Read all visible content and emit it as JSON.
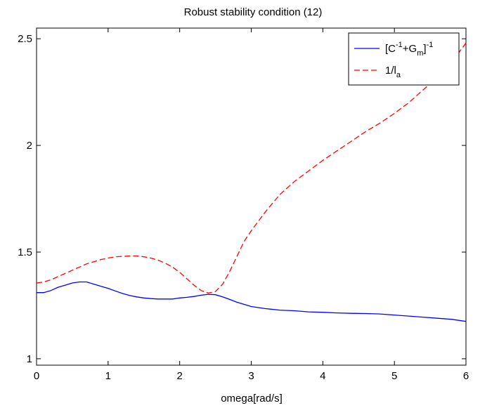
{
  "chart_data": {
    "type": "line",
    "title": "Robust stability condition (12)",
    "xlabel": "omega[rad/s]",
    "ylabel": "",
    "xlim": [
      0,
      6
    ],
    "ylim": [
      0.97,
      2.55
    ],
    "xticks": [
      "0",
      "1",
      "2",
      "3",
      "4",
      "5",
      "6"
    ],
    "yticks": [
      "1",
      "1.5",
      "2",
      "2.5"
    ],
    "xtick_values": [
      0,
      1,
      2,
      3,
      4,
      5,
      6
    ],
    "ytick_values": [
      1,
      1.5,
      2,
      2.5
    ],
    "grid": false,
    "legend_position": "top-right",
    "series": [
      {
        "name": "[C-1+Gm]-1",
        "legend": {
          "base": "[C",
          "sup1": "-1",
          "mid": "+G",
          "sub": "m",
          "close": "]",
          "sup2": "-1"
        },
        "color": "#0000ff",
        "style": "solid",
        "x": [
          0,
          0.1,
          0.2,
          0.3,
          0.4,
          0.5,
          0.6,
          0.7,
          0.8,
          0.9,
          1.0,
          1.1,
          1.2,
          1.3,
          1.4,
          1.5,
          1.6,
          1.7,
          1.8,
          1.9,
          2.0,
          2.1,
          2.2,
          2.3,
          2.4,
          2.5,
          2.6,
          2.7,
          2.8,
          2.9,
          3.0,
          3.2,
          3.4,
          3.6,
          3.8,
          4.0,
          4.2,
          4.4,
          4.6,
          4.8,
          5.0,
          5.2,
          5.4,
          5.6,
          5.8,
          6.0
        ],
        "y": [
          1.31,
          1.31,
          1.32,
          1.335,
          1.345,
          1.355,
          1.36,
          1.36,
          1.35,
          1.34,
          1.33,
          1.318,
          1.306,
          1.297,
          1.29,
          1.285,
          1.282,
          1.28,
          1.28,
          1.28,
          1.285,
          1.288,
          1.292,
          1.298,
          1.302,
          1.3,
          1.29,
          1.278,
          1.265,
          1.255,
          1.245,
          1.235,
          1.228,
          1.225,
          1.22,
          1.218,
          1.215,
          1.213,
          1.212,
          1.21,
          1.205,
          1.2,
          1.195,
          1.19,
          1.185,
          1.175
        ]
      },
      {
        "name": "1/la",
        "legend": {
          "base": "1/l",
          "sub": "a"
        },
        "color": "#ff0000",
        "style": "dashed",
        "x": [
          0,
          0.1,
          0.2,
          0.3,
          0.4,
          0.5,
          0.6,
          0.7,
          0.8,
          0.9,
          1.0,
          1.1,
          1.2,
          1.3,
          1.4,
          1.5,
          1.6,
          1.7,
          1.8,
          1.9,
          2.0,
          2.1,
          2.2,
          2.3,
          2.4,
          2.5,
          2.6,
          2.7,
          2.8,
          2.9,
          3.0,
          3.2,
          3.4,
          3.6,
          3.8,
          4.0,
          4.2,
          4.4,
          4.6,
          4.8,
          5.0,
          5.2,
          5.4,
          5.6,
          5.8,
          6.0
        ],
        "y": [
          1.355,
          1.36,
          1.37,
          1.385,
          1.4,
          1.415,
          1.43,
          1.445,
          1.455,
          1.465,
          1.472,
          1.478,
          1.48,
          1.482,
          1.482,
          1.478,
          1.472,
          1.462,
          1.448,
          1.43,
          1.405,
          1.375,
          1.345,
          1.32,
          1.308,
          1.315,
          1.35,
          1.41,
          1.48,
          1.55,
          1.6,
          1.69,
          1.77,
          1.83,
          1.88,
          1.93,
          1.975,
          2.02,
          2.065,
          2.105,
          2.15,
          2.2,
          2.26,
          2.32,
          2.39,
          2.48
        ]
      }
    ]
  }
}
